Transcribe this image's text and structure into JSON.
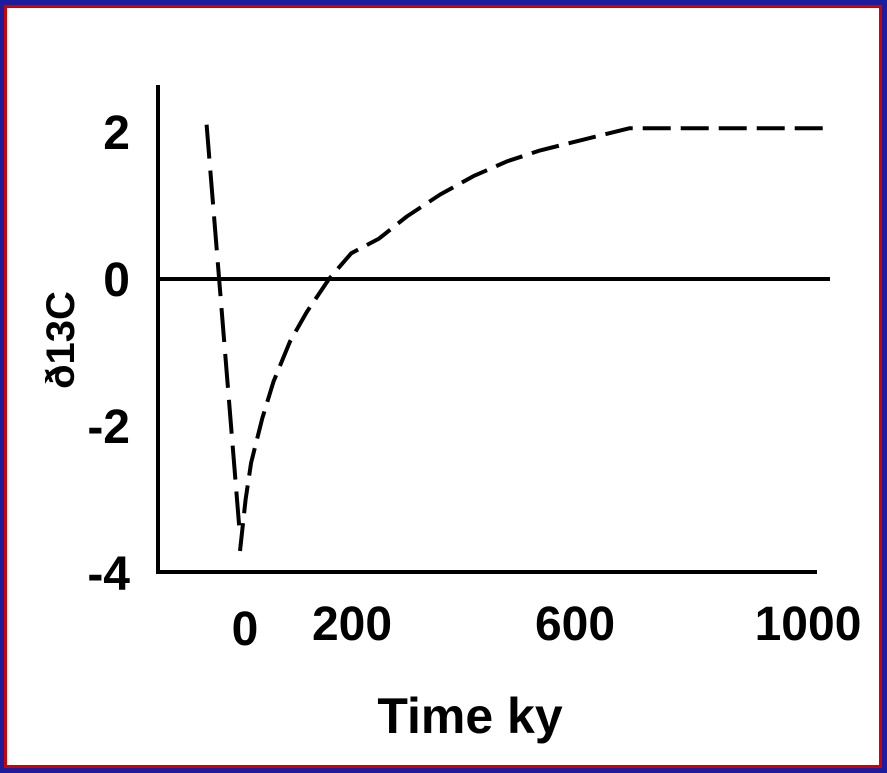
{
  "chart_data": {
    "type": "line",
    "title": "",
    "xlabel": "Time ky",
    "ylabel": "δ13C",
    "ylabel_rendered": "ð13C",
    "x_tick_labels": [
      "0",
      "200",
      "600",
      "1000"
    ],
    "y_tick_labels": [
      "2",
      "0",
      "-2",
      "-4"
    ],
    "y_ticks": [
      2,
      0,
      -2,
      -4
    ],
    "ylim": [
      -4,
      2.5
    ],
    "grid": false,
    "legend": "none",
    "reference_line": {
      "y": 0
    },
    "series": [
      {
        "style": "dashed",
        "x": [
          -60,
          0
        ],
        "y": [
          2.1,
          -3.5
        ]
      },
      {
        "style": "dashed",
        "x": [
          0,
          10,
          20,
          40,
          60,
          90,
          120,
          160,
          200,
          250,
          300,
          360,
          420,
          480,
          540,
          620,
          700,
          760,
          850,
          950,
          1050
        ],
        "y": [
          -3.7,
          -3.0,
          -2.5,
          -1.9,
          -1.4,
          -0.85,
          -0.45,
          0.0,
          0.35,
          0.55,
          0.85,
          1.15,
          1.4,
          1.6,
          1.75,
          1.9,
          2.05,
          2.05,
          2.05,
          2.05,
          2.05
        ]
      }
    ]
  },
  "colors": {
    "border_outer": "#1c1c9c",
    "border_inner": "#d40000",
    "line": "#000000",
    "background": "#ffffff"
  }
}
